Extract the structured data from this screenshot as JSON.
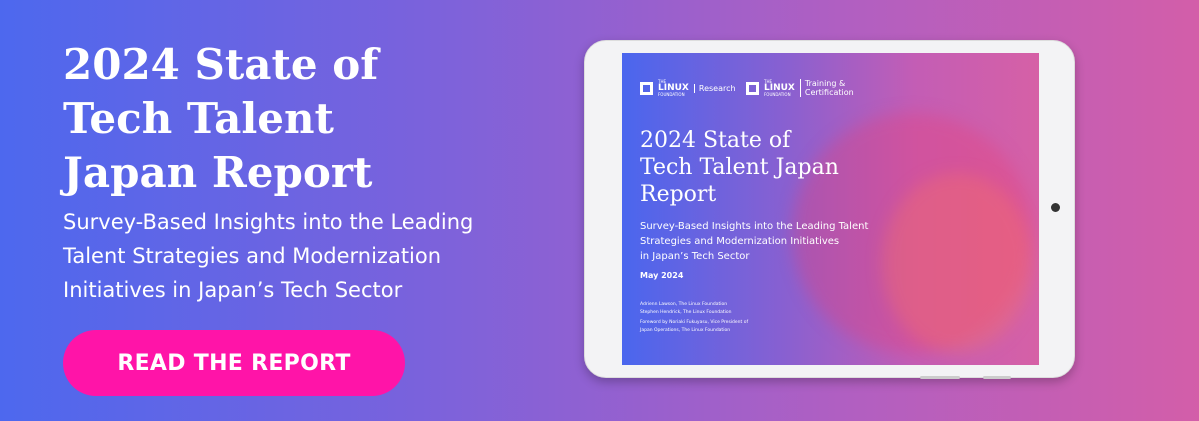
{
  "headline": {
    "line1": "2024 State of",
    "line2": "Tech Talent",
    "line3": "Japan Report"
  },
  "subtitle": {
    "line1": "Survey-Based Insights into the Leading",
    "line2": "Talent Strategies and Modernization",
    "line3": "Initiatives in Japan’s Tech Sector"
  },
  "cta": "READ THE REPORT",
  "cover": {
    "logo1": {
      "the": "THE",
      "linux": "LINUX",
      "foundation": "FOUNDATION",
      "tag": "Research"
    },
    "logo2": {
      "the": "THE",
      "linux": "LINUX",
      "foundation": "FOUNDATION",
      "tag1": "Training &",
      "tag2": "Certification"
    },
    "title1": "2024 State of",
    "title2": "Tech Talent Japan",
    "title3": "Report",
    "sub1": "Survey-Based Insights into the Leading Talent",
    "sub2": "Strategies and Modernization Initiatives",
    "sub3": "in Japan’s Tech Sector",
    "date": "May 2024",
    "author1": "Adrienn Lawson, The Linux Foundation",
    "author2": "Stephen Hendrick, The Linux Foundation",
    "foreword1": "Foreword by Noriaki Fukuyasu, Vice President of",
    "foreword2": "Japan Operations, The Linux Foundation"
  },
  "colors": {
    "cta": "#ff14a8",
    "bg_left": "#4d68ee",
    "bg_right": "#d35ea9"
  }
}
